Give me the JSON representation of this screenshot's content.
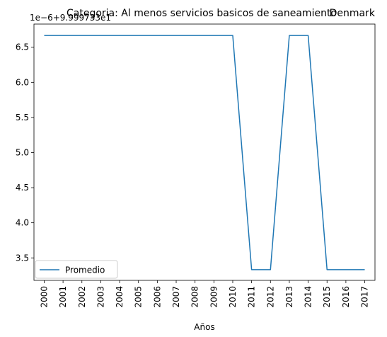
{
  "chart_data": {
    "type": "line",
    "title": "Categoria: Al menos servicios basicos de saneamiento",
    "title_right": "Denmark",
    "y_offset_label": "1e−6+9.999733e1",
    "xlabel": "Años",
    "ylabel": "",
    "categories": [
      "2000",
      "2001",
      "2002",
      "2003",
      "2004",
      "2005",
      "2006",
      "2007",
      "2008",
      "2009",
      "2010",
      "2011",
      "2012",
      "2013",
      "2014",
      "2015",
      "2016",
      "2017"
    ],
    "y_ticks": [
      "3.5",
      "4.0",
      "4.5",
      "5.0",
      "5.5",
      "6.0",
      "6.5"
    ],
    "y_tick_values": [
      3.5,
      4.0,
      4.5,
      5.0,
      5.5,
      6.0,
      6.5
    ],
    "ylim": [
      3.18,
      6.83
    ],
    "grid": false,
    "legend_position": "lower-left",
    "series": [
      {
        "name": "Promedio",
        "color": "#1f77b4",
        "values": [
          6.667,
          6.667,
          6.667,
          6.667,
          6.667,
          6.667,
          6.667,
          6.667,
          6.667,
          6.667,
          6.667,
          3.333,
          3.333,
          6.667,
          6.667,
          3.333,
          3.333,
          3.333
        ]
      }
    ]
  }
}
